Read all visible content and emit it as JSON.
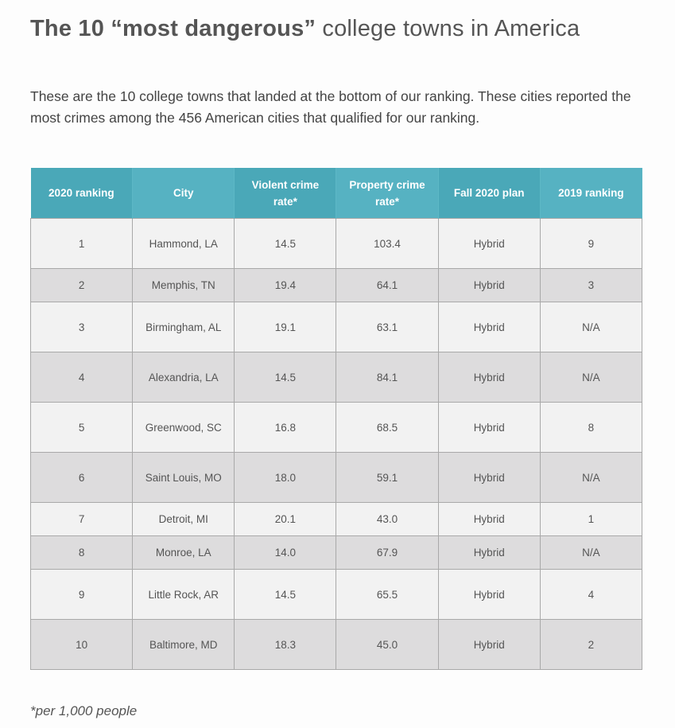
{
  "title": {
    "bold": "The 10 “most dangerous”",
    "rest": " college towns in America"
  },
  "intro": "These are the 10 college towns that landed at the bottom of our ranking. These cities reported the most crimes among the 456 American cities that qualified for our ranking.",
  "table": {
    "headers": [
      "2020 ranking",
      "City",
      "Violent crime rate*",
      "Property crime rate*",
      "Fall 2020 plan",
      "2019 ranking"
    ],
    "rows": [
      [
        "1",
        "Hammond, LA",
        "14.5",
        "103.4",
        "Hybrid",
        "9"
      ],
      [
        "2",
        "Memphis, TN",
        "19.4",
        "64.1",
        "Hybrid",
        "3"
      ],
      [
        "3",
        "Birmingham, AL",
        "19.1",
        "63.1",
        "Hybrid",
        "N/A"
      ],
      [
        "4",
        "Alexandria, LA",
        "14.5",
        "84.1",
        "Hybrid",
        "N/A"
      ],
      [
        "5",
        "Greenwood, SC",
        "16.8",
        "68.5",
        "Hybrid",
        "8"
      ],
      [
        "6",
        "Saint Louis, MO",
        "18.0",
        "59.1",
        "Hybrid",
        "N/A"
      ],
      [
        "7",
        "Detroit, MI",
        "20.1",
        "43.0",
        "Hybrid",
        "1"
      ],
      [
        "8",
        "Monroe, LA",
        "14.0",
        "67.9",
        "Hybrid",
        "N/A"
      ],
      [
        "9",
        "Little Rock, AR",
        "14.5",
        "65.5",
        "Hybrid",
        "4"
      ],
      [
        "10",
        "Baltimore, MD",
        "18.3",
        "45.0",
        "Hybrid",
        "2"
      ]
    ]
  },
  "footnote": "*per 1,000 people",
  "colors": {
    "header_a": "#4aa8b8",
    "header_b": "#56b2c2",
    "row_light": "#f2f2f2",
    "row_dark": "#dddcdd"
  }
}
